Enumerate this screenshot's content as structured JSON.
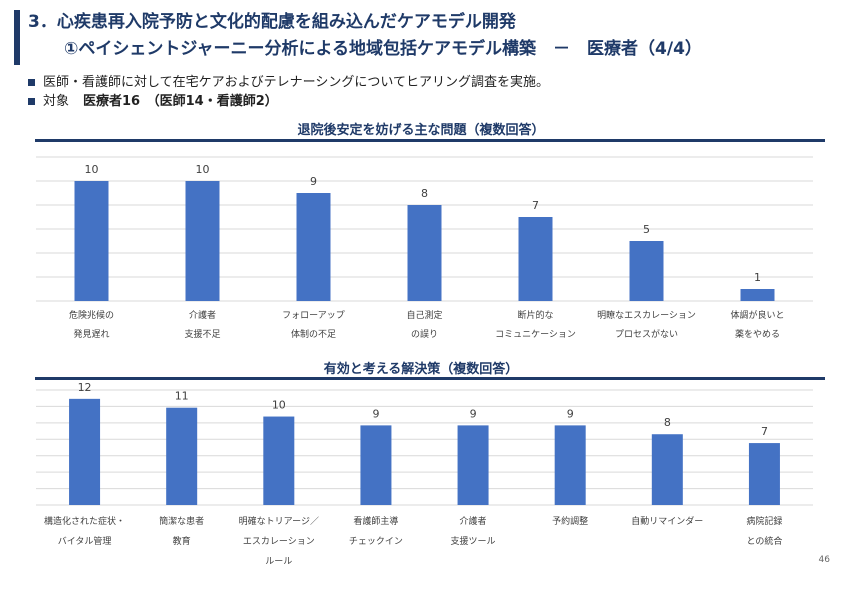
{
  "header": {
    "line1": "3．心疾患再入院予防と文化的配慮を組み込んだケアモデル開発",
    "line2": "①ペイシェントジャーニー分析による地域包括ケアモデル構築　－　医療者（4/4）"
  },
  "bullets": {
    "item1": "医師・看護師に対して在宅ケアおよびテレナーシングについてヒアリング調査を実施。",
    "item2_label": "対象",
    "item2_value": "医療者16　（医師14・看護師2）"
  },
  "page_number": "46",
  "chart_data": [
    {
      "type": "bar",
      "title": "退院後安定を妨げる主な問題（複数回答）",
      "categories": [
        [
          "危険兆候の",
          "発見遅れ"
        ],
        [
          "介護者",
          "支援不足"
        ],
        [
          "フォローアップ",
          "体制の不足"
        ],
        [
          "自己測定",
          "の誤り"
        ],
        [
          "断片的な",
          "コミュニケーション"
        ],
        [
          "明瞭なエスカレーション",
          "プロセスがない"
        ],
        [
          "体調が良いと",
          "薬をやめる"
        ]
      ],
      "values": [
        10,
        10,
        9,
        8,
        7,
        5,
        1
      ],
      "ylim": [
        0,
        12
      ],
      "color": "#4472c4",
      "grid": true
    },
    {
      "type": "bar",
      "title": "有効と考える解決策（複数回答）",
      "categories": [
        [
          "構造化された症状・",
          "バイタル管理"
        ],
        [
          "簡潔な患者",
          "教育"
        ],
        [
          "明確なトリアージ／",
          "エスカレーション",
          "ルール"
        ],
        [
          "看護師主導",
          "チェックイン"
        ],
        [
          "介護者",
          "支援ツール"
        ],
        [
          "予約調整"
        ],
        [
          "自動リマインダー"
        ],
        [
          "病院記録",
          "との統合"
        ]
      ],
      "values": [
        12,
        11,
        10,
        9,
        9,
        9,
        8,
        7
      ],
      "ylim": [
        0,
        13
      ],
      "color": "#4472c4",
      "grid": true
    }
  ]
}
